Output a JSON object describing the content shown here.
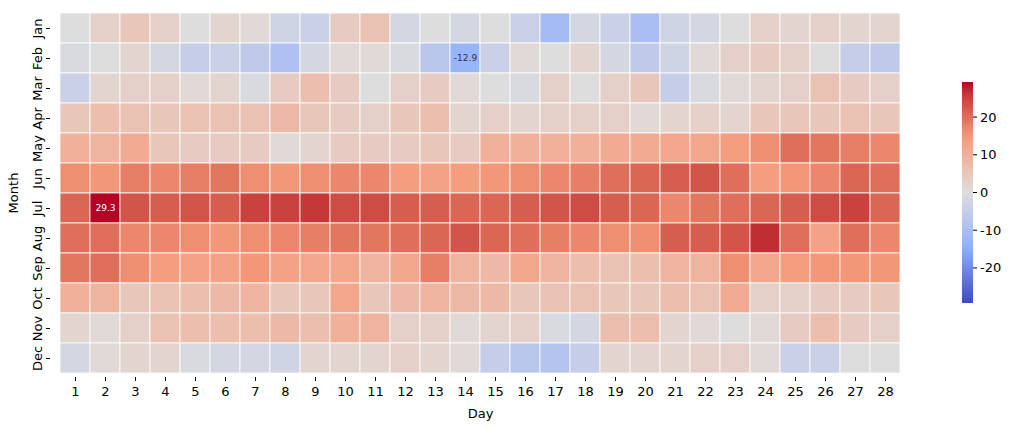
{
  "chart_data": {
    "type": "heatmap",
    "x_label": "Day",
    "y_label": "Month",
    "x": [
      1,
      2,
      3,
      4,
      5,
      6,
      7,
      8,
      9,
      10,
      11,
      12,
      13,
      14,
      15,
      16,
      17,
      18,
      19,
      20,
      21,
      22,
      23,
      24,
      25,
      26,
      27,
      28
    ],
    "y": [
      "Jan",
      "Feb",
      "Mar",
      "Apr",
      "May",
      "Jun",
      "Jul",
      "Aug",
      "Sep",
      "Oct",
      "Nov",
      "Dec"
    ],
    "values": [
      [
        0,
        3,
        5,
        3,
        0,
        2,
        1,
        -3,
        -4,
        4,
        6,
        -2,
        0,
        -2,
        0,
        -4,
        -11,
        -2,
        -4,
        -10,
        -3,
        -2,
        0,
        3,
        2,
        3,
        2,
        2
      ],
      [
        -1,
        0,
        2,
        -2,
        -5,
        -4,
        -6,
        -9,
        -2,
        1,
        1,
        -1,
        -7,
        -12.9,
        -4,
        1,
        0,
        2,
        -2,
        -6,
        -3,
        1,
        3,
        4,
        3,
        0,
        -5,
        -6
      ],
      [
        -4,
        2,
        3,
        3,
        1,
        2,
        -1,
        4,
        7,
        4,
        0,
        3,
        4,
        1,
        0,
        -1,
        3,
        0,
        3,
        5,
        -5,
        -1,
        1,
        2,
        3,
        6,
        4,
        3
      ],
      [
        5,
        7,
        6,
        5,
        6,
        6,
        6,
        8,
        5,
        4,
        3,
        5,
        7,
        2,
        3,
        2,
        3,
        3,
        3,
        1,
        2,
        3,
        2,
        5,
        5,
        5,
        6,
        5
      ],
      [
        10,
        9,
        11,
        5,
        4,
        4,
        4,
        1,
        2,
        4,
        4,
        4,
        5,
        4,
        10,
        10,
        10,
        10,
        11,
        11,
        12,
        12,
        14,
        16,
        20,
        19,
        18,
        17
      ],
      [
        16,
        15,
        18,
        17,
        18,
        19,
        16,
        15,
        16,
        17,
        17,
        14,
        13,
        14,
        15,
        16,
        17,
        18,
        20,
        21,
        22,
        23,
        20,
        14,
        15,
        17,
        21,
        20
      ],
      [
        21,
        29.3,
        23,
        22,
        23,
        22,
        25,
        25,
        26,
        24,
        24,
        22,
        22,
        21,
        21,
        22,
        23,
        24,
        22,
        21,
        17,
        19,
        20,
        21,
        22,
        24,
        25,
        21
      ],
      [
        20,
        20,
        17,
        17,
        16,
        15,
        16,
        17,
        18,
        19,
        19,
        20,
        21,
        23,
        21,
        20,
        18,
        17,
        16,
        16,
        22,
        22,
        23,
        27,
        20,
        13,
        20,
        17
      ],
      [
        19,
        20,
        16,
        14,
        13,
        13,
        15,
        13,
        12,
        12,
        9,
        12,
        18,
        9,
        8,
        12,
        9,
        7,
        6,
        7,
        9,
        9,
        16,
        12,
        14,
        15,
        15,
        15
      ],
      [
        10,
        9,
        5,
        6,
        7,
        8,
        9,
        5,
        5,
        12,
        5,
        8,
        9,
        8,
        8,
        5,
        6,
        6,
        5,
        5,
        7,
        6,
        11,
        3,
        3,
        4,
        4,
        5
      ],
      [
        2,
        1,
        3,
        6,
        7,
        7,
        7,
        8,
        7,
        10,
        9,
        3,
        3,
        1,
        2,
        3,
        -1,
        -2,
        7,
        7,
        2,
        1,
        0,
        1,
        4,
        7,
        4,
        3
      ],
      [
        -2,
        1,
        2,
        2,
        -1,
        -2,
        -2,
        -3,
        2,
        2,
        2,
        3,
        2,
        1,
        -5,
        -7,
        -8,
        -5,
        2,
        2,
        2,
        3,
        3,
        1,
        -4,
        -4,
        0,
        0
      ]
    ],
    "annotations": [
      {
        "x": 2,
        "y": "Jul",
        "text": "29.3"
      },
      {
        "x": 14,
        "y": "Feb",
        "text": "-12.9"
      }
    ],
    "colorbar": {
      "range": [
        -29.3,
        29.3
      ],
      "ticks": [
        -20,
        -10,
        0,
        10,
        20
      ]
    }
  }
}
